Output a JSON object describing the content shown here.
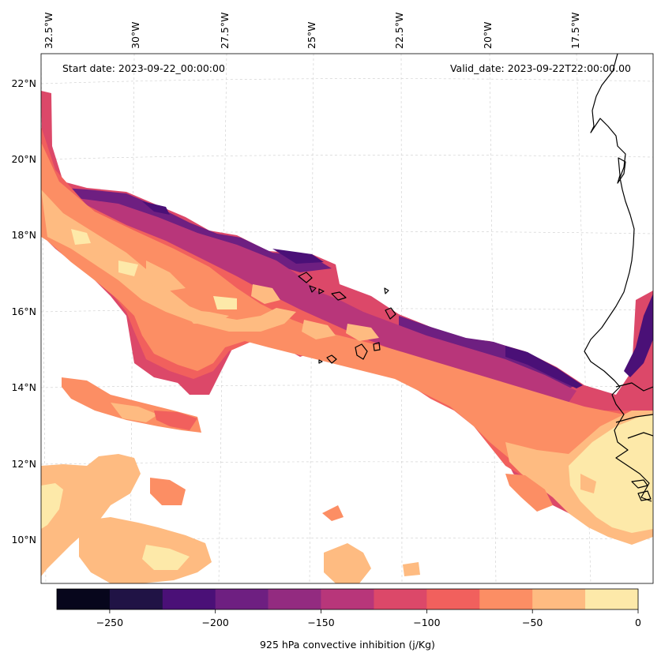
{
  "map": {
    "start_label": "Start date: 2023-09-22_00:00:00",
    "valid_label": "Valid_date: 2023-09-22T22:00:00.00",
    "lon_labels": [
      "32.5°W",
      "30°W",
      "27.5°W",
      "25°W",
      "22.5°W",
      "20°W",
      "17.5°W"
    ],
    "lat_labels": [
      "22°N",
      "20°N",
      "18°N",
      "16°N",
      "14°N",
      "12°N",
      "10°N"
    ]
  },
  "colorbar": {
    "label": "925 hPa convective inhibition (j/Kg)",
    "tick_labels": [
      "−250",
      "−200",
      "−150",
      "−100",
      "−50",
      "0"
    ],
    "bins": [
      {
        "range": [
          -275,
          -250
        ],
        "color": "#07061c"
      },
      {
        "range": [
          -250,
          -225
        ],
        "color": "#201345"
      },
      {
        "range": [
          -225,
          -200
        ],
        "color": "#4a1077"
      },
      {
        "range": [
          -200,
          -175
        ],
        "color": "#6e1f81"
      },
      {
        "range": [
          -175,
          -150
        ],
        "color": "#932b80"
      },
      {
        "range": [
          -150,
          -125
        ],
        "color": "#b8367a"
      },
      {
        "range": [
          -125,
          -100
        ],
        "color": "#dc4869"
      },
      {
        "range": [
          -100,
          -75
        ],
        "color": "#f1605d"
      },
      {
        "range": [
          -75,
          -50
        ],
        "color": "#fc8e64"
      },
      {
        "range": [
          -50,
          -25
        ],
        "color": "#febb81"
      },
      {
        "range": [
          -25,
          0
        ],
        "color": "#fde9a9"
      }
    ]
  }
}
